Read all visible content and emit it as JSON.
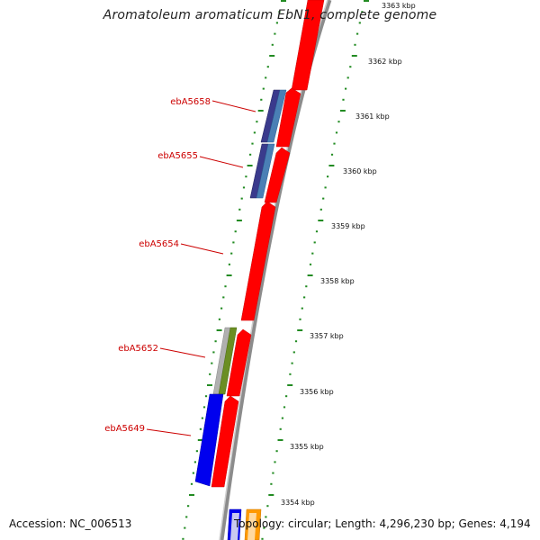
{
  "title": "Aromatoleum aromaticum EbN1, complete genome",
  "accession": "Accession: NC_006513",
  "topology": "Topology: circular; Length: 4,296,230 bp; Genes: 4,194",
  "colors": {
    "forward_strand": "#ff0000",
    "gene_dark_blue": "#3a3a8c",
    "gene_steel_blue": "#4a7fb5",
    "gene_blue": "#0000ee",
    "gene_olive": "#6b8e23",
    "gene_gray": "#b0b0b0",
    "gene_orange": "#ff9900",
    "backbone": "#8c8c8c",
    "label_red": "#cc0000",
    "tick_green": "#228b22"
  },
  "gene_labels": [
    {
      "id": "gene-label-ebA5658",
      "text": "ebA5658"
    },
    {
      "id": "gene-label-ebA5655",
      "text": "ebA5655"
    },
    {
      "id": "gene-label-ebA5654",
      "text": "ebA5654"
    },
    {
      "id": "gene-label-ebA5652",
      "text": "ebA5652"
    },
    {
      "id": "gene-label-ebA5649",
      "text": "ebA5649"
    }
  ],
  "scale_labels": [
    "3363 kbp",
    "3362 kbp",
    "3361 kbp",
    "3360 kbp",
    "3359 kbp",
    "3358 kbp",
    "3357 kbp",
    "3356 kbp",
    "3355 kbp",
    "3354 kbp"
  ]
}
